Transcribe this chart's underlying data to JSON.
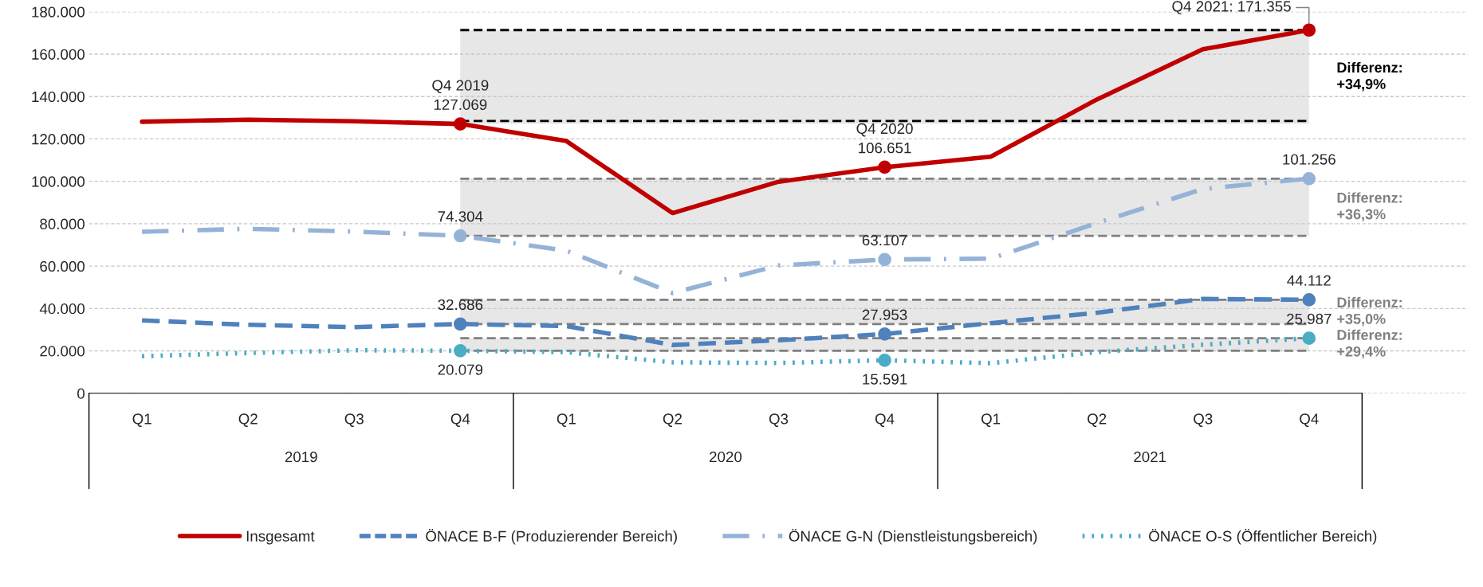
{
  "chart_data": {
    "type": "line",
    "categories": [
      "Q1",
      "Q2",
      "Q3",
      "Q4",
      "Q1",
      "Q2",
      "Q3",
      "Q4",
      "Q1",
      "Q2",
      "Q3",
      "Q4"
    ],
    "series": [
      {
        "name": "Insgesamt",
        "color": "#c00000",
        "line_style": "solid",
        "values": [
          128100,
          129100,
          128300,
          127069,
          119000,
          85000,
          99800,
          106651,
          111600,
          138600,
          162300,
          171355
        ],
        "value_labels": [
          null,
          null,
          null,
          "Q4 2019\n127.069",
          null,
          null,
          null,
          "Q4 2020\n106.651",
          null,
          null,
          null,
          "Q4 2021: 171.355"
        ]
      },
      {
        "name": "ÖNACE B-F (Produzierender Bereich)",
        "color": "#4f81bd",
        "line_style": "dashed",
        "values": [
          34400,
          32300,
          31200,
          32686,
          31700,
          22800,
          25000,
          27953,
          33100,
          38000,
          44500,
          44112
        ],
        "value_labels": [
          null,
          null,
          null,
          "32.686",
          null,
          null,
          null,
          "27.953",
          null,
          null,
          null,
          "44.112"
        ]
      },
      {
        "name": "ÖNACE G-N (Dienstleistungsbereich)",
        "color": "#95b3d7",
        "line_style": "dashdot",
        "values": [
          76200,
          77600,
          76300,
          74304,
          67300,
          47300,
          60300,
          63107,
          63500,
          80300,
          96400,
          101256
        ],
        "value_labels": [
          null,
          null,
          null,
          "74.304",
          null,
          null,
          null,
          "63.107",
          null,
          null,
          null,
          "101.256"
        ]
      },
      {
        "name": "ÖNACE O-S (Öffentlicher Bereich)",
        "color": "#4bacc6",
        "line_style": "dotted",
        "values": [
          17500,
          19000,
          20300,
          20079,
          19400,
          14600,
          14300,
          15591,
          14200,
          19400,
          22900,
          25987
        ],
        "value_labels": [
          null,
          null,
          null,
          "20.079",
          null,
          null,
          null,
          "15.591",
          null,
          null,
          null,
          "25.987"
        ]
      }
    ],
    "bands": [
      {
        "axis": "y",
        "from": 127069,
        "to": 171355,
        "label": "Differenz:\n+34,9%",
        "color": "#e7e7e7"
      },
      {
        "axis": "y",
        "from": 74304,
        "to": 101256,
        "label": "Differenz:\n+36,3%",
        "color": "#e7e7e7"
      },
      {
        "axis": "y",
        "from": 32686,
        "to": 44112,
        "label": "Differenz:\n+35,0%",
        "color": "#e7e7e7"
      },
      {
        "axis": "y",
        "from": 20079,
        "to": 25987,
        "label": "Differenz:\n+29,4%",
        "color": "#e7e7e7"
      }
    ],
    "ref_lines": [
      {
        "axis": "y",
        "value": 171355,
        "color": "#000000",
        "line_style": "dashed"
      },
      {
        "axis": "y",
        "value": 128500,
        "color": "#000000",
        "line_style": "dashed"
      },
      {
        "axis": "y",
        "value": 101256,
        "color": "#808080",
        "line_style": "dashed"
      },
      {
        "axis": "y",
        "value": 74304,
        "color": "#808080",
        "line_style": "dashed"
      },
      {
        "axis": "y",
        "value": 44112,
        "color": "#808080",
        "line_style": "dashed"
      },
      {
        "axis": "y",
        "value": 32686,
        "color": "#808080",
        "line_style": "dashed"
      },
      {
        "axis": "y",
        "value": 25987,
        "color": "#808080",
        "line_style": "dashed"
      },
      {
        "axis": "y",
        "value": 20079,
        "color": "#808080",
        "line_style": "dashed"
      }
    ],
    "annotations": [
      "2019",
      "2020",
      "2021"
    ],
    "ylim": [
      0,
      180000
    ],
    "yticks": [
      {
        "value": 0,
        "label": "0"
      },
      {
        "value": 20000,
        "label": "20.000"
      },
      {
        "value": 40000,
        "label": "40.000"
      },
      {
        "value": 60000,
        "label": "60.000"
      },
      {
        "value": 80000,
        "label": "80.000"
      },
      {
        "value": 100000,
        "label": "100.000"
      },
      {
        "value": 120000,
        "label": "120.000"
      },
      {
        "value": 140000,
        "label": "140.000"
      },
      {
        "value": 160000,
        "label": "160.000"
      },
      {
        "value": 180000,
        "label": "180.000"
      }
    ],
    "grid": "y",
    "legend": "bottom"
  }
}
